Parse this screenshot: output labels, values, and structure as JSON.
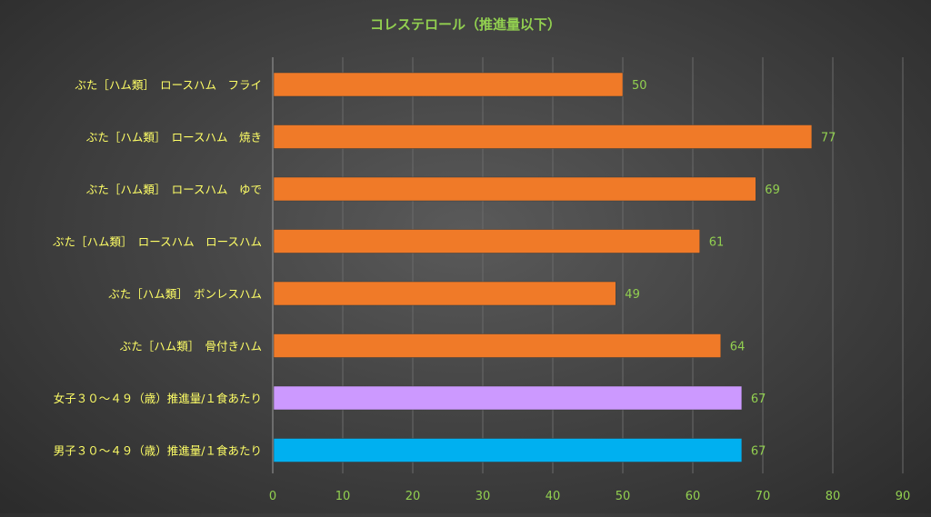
{
  "chart_data": {
    "type": "bar",
    "orientation": "horizontal",
    "title": "コレステロール（推進量以下）",
    "xlabel": "",
    "ylabel": "",
    "categories": [
      "ぶた［ハム類］　ロースハム　フライ",
      "ぶた［ハム類］　ロースハム　焼き",
      "ぶた［ハム類］　ロースハム　ゆで",
      "ぶた［ハム類］　ロースハム　ロースハム",
      "ぶた［ハム類］　ボンレスハム",
      "ぶた［ハム類］　骨付きハム",
      "女子３０～４９（歳）推進量/１食あたり",
      "男子３０～４９（歳）推進量/１食あたり"
    ],
    "values": [
      50,
      77,
      69,
      61,
      49,
      64,
      67,
      67
    ],
    "value_labels": [
      "50",
      "77",
      "69",
      "61",
      "49",
      "64",
      "67",
      "67"
    ],
    "bar_colors": [
      "#f07a28",
      "#f07a28",
      "#f07a28",
      "#f07a28",
      "#f07a28",
      "#f07a28",
      "#cc99ff",
      "#00b0f0"
    ],
    "xlim": [
      0,
      90
    ],
    "x_ticks": [
      0,
      10,
      20,
      30,
      40,
      50,
      60,
      70,
      80,
      90
    ],
    "x_tick_labels": [
      "0",
      "10",
      "20",
      "30",
      "40",
      "50",
      "60",
      "70",
      "80",
      "90"
    ],
    "grid": true,
    "legend": "none",
    "colors": {
      "title": "#92d050",
      "category_label": "#ffff66",
      "value_label": "#92d050",
      "tick_label": "#92d050",
      "gridline": "#6a6a6a"
    }
  }
}
